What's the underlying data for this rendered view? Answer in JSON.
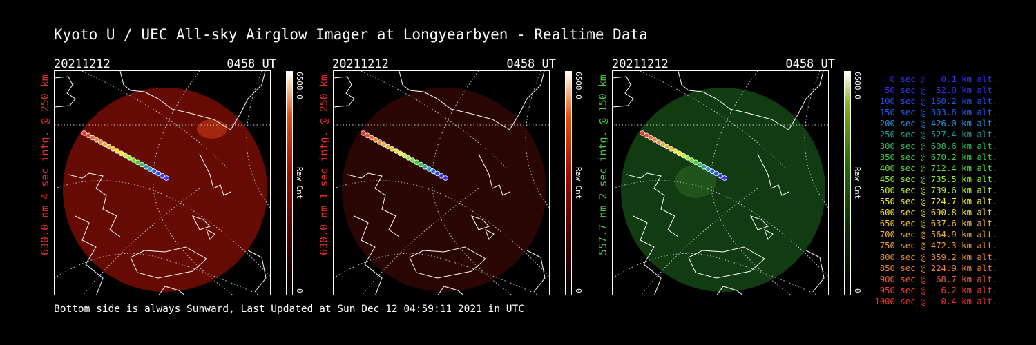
{
  "title": "Kyoto U / UEC All-sky Airglow Imager at Longyearbyen - Realtime Data",
  "footer": "Bottom side is always Sunward, Last Updated at Sun Dec 12 04:59:11 2021 in UTC",
  "colors": {
    "red_label": "#e83020",
    "green_label": "#40d040",
    "background": "#000000"
  },
  "panels": [
    {
      "date": "20211212",
      "time": "0458 UT",
      "side_label": "630.0 nm 4 sec intg. @ 250 km",
      "colorbar_max": "6500.0",
      "colorbar_min": "0",
      "colorbar_unit": "Raw Cnt",
      "tint": "red",
      "label_color": "#e83020"
    },
    {
      "date": "20211212",
      "time": "0458 UT",
      "side_label": "630.0 nm 1 sec intg. @ 250 km",
      "colorbar_max": "6500.0",
      "colorbar_min": "0",
      "colorbar_unit": "Raw Cnt",
      "tint": "darkred",
      "label_color": "#e83020"
    },
    {
      "date": "20211212",
      "time": "0458 UT",
      "side_label": "557.7 nm 2 sec intg. @ 150 km",
      "colorbar_max": "6500.0",
      "colorbar_min": "0",
      "colorbar_unit": "Raw Cnt",
      "tint": "green",
      "label_color": "#40d040"
    }
  ],
  "legend": [
    {
      "text": "0 sec @   0.1 km alt.",
      "color": "#3030ff"
    },
    {
      "text": "50 sec @  52.0 km alt.",
      "color": "#3030ff"
    },
    {
      "text": "100 sec @ 160.2 km alt.",
      "color": "#2050ff"
    },
    {
      "text": "150 sec @ 303.8 km alt.",
      "color": "#2060ff"
    },
    {
      "text": "200 sec @ 426.0 km alt.",
      "color": "#2090e0"
    },
    {
      "text": "250 sec @ 527.4 km alt.",
      "color": "#20a0a0"
    },
    {
      "text": "300 sec @ 608.6 km alt.",
      "color": "#30c060"
    },
    {
      "text": "350 sec @ 670.2 km alt.",
      "color": "#40d040"
    },
    {
      "text": "400 sec @ 712.4 km alt.",
      "color": "#60e030"
    },
    {
      "text": "450 sec @ 735.5 km alt.",
      "color": "#90f030"
    },
    {
      "text": "500 sec @ 739.6 km alt.",
      "color": "#c0f030"
    },
    {
      "text": "550 sec @ 724.7 km alt.",
      "color": "#f0f030"
    },
    {
      "text": "600 sec @ 690.8 km alt.",
      "color": "#f0e030"
    },
    {
      "text": "650 sec @ 637.6 km alt.",
      "color": "#f0c030"
    },
    {
      "text": "700 sec @ 564.9 km alt.",
      "color": "#f0b030"
    },
    {
      "text": "750 sec @ 472.3 km alt.",
      "color": "#f0a030"
    },
    {
      "text": "800 sec @ 359.2 km alt.",
      "color": "#f09030"
    },
    {
      "text": "850 sec @ 224.9 km alt.",
      "color": "#f08030"
    },
    {
      "text": "900 sec @  68.7 km alt.",
      "color": "#f06030"
    },
    {
      "text": "950 sec @   6.2 km alt.",
      "color": "#f04030"
    },
    {
      "text": "1000 sec @   0.4 km alt.",
      "color": "#f03030"
    }
  ]
}
